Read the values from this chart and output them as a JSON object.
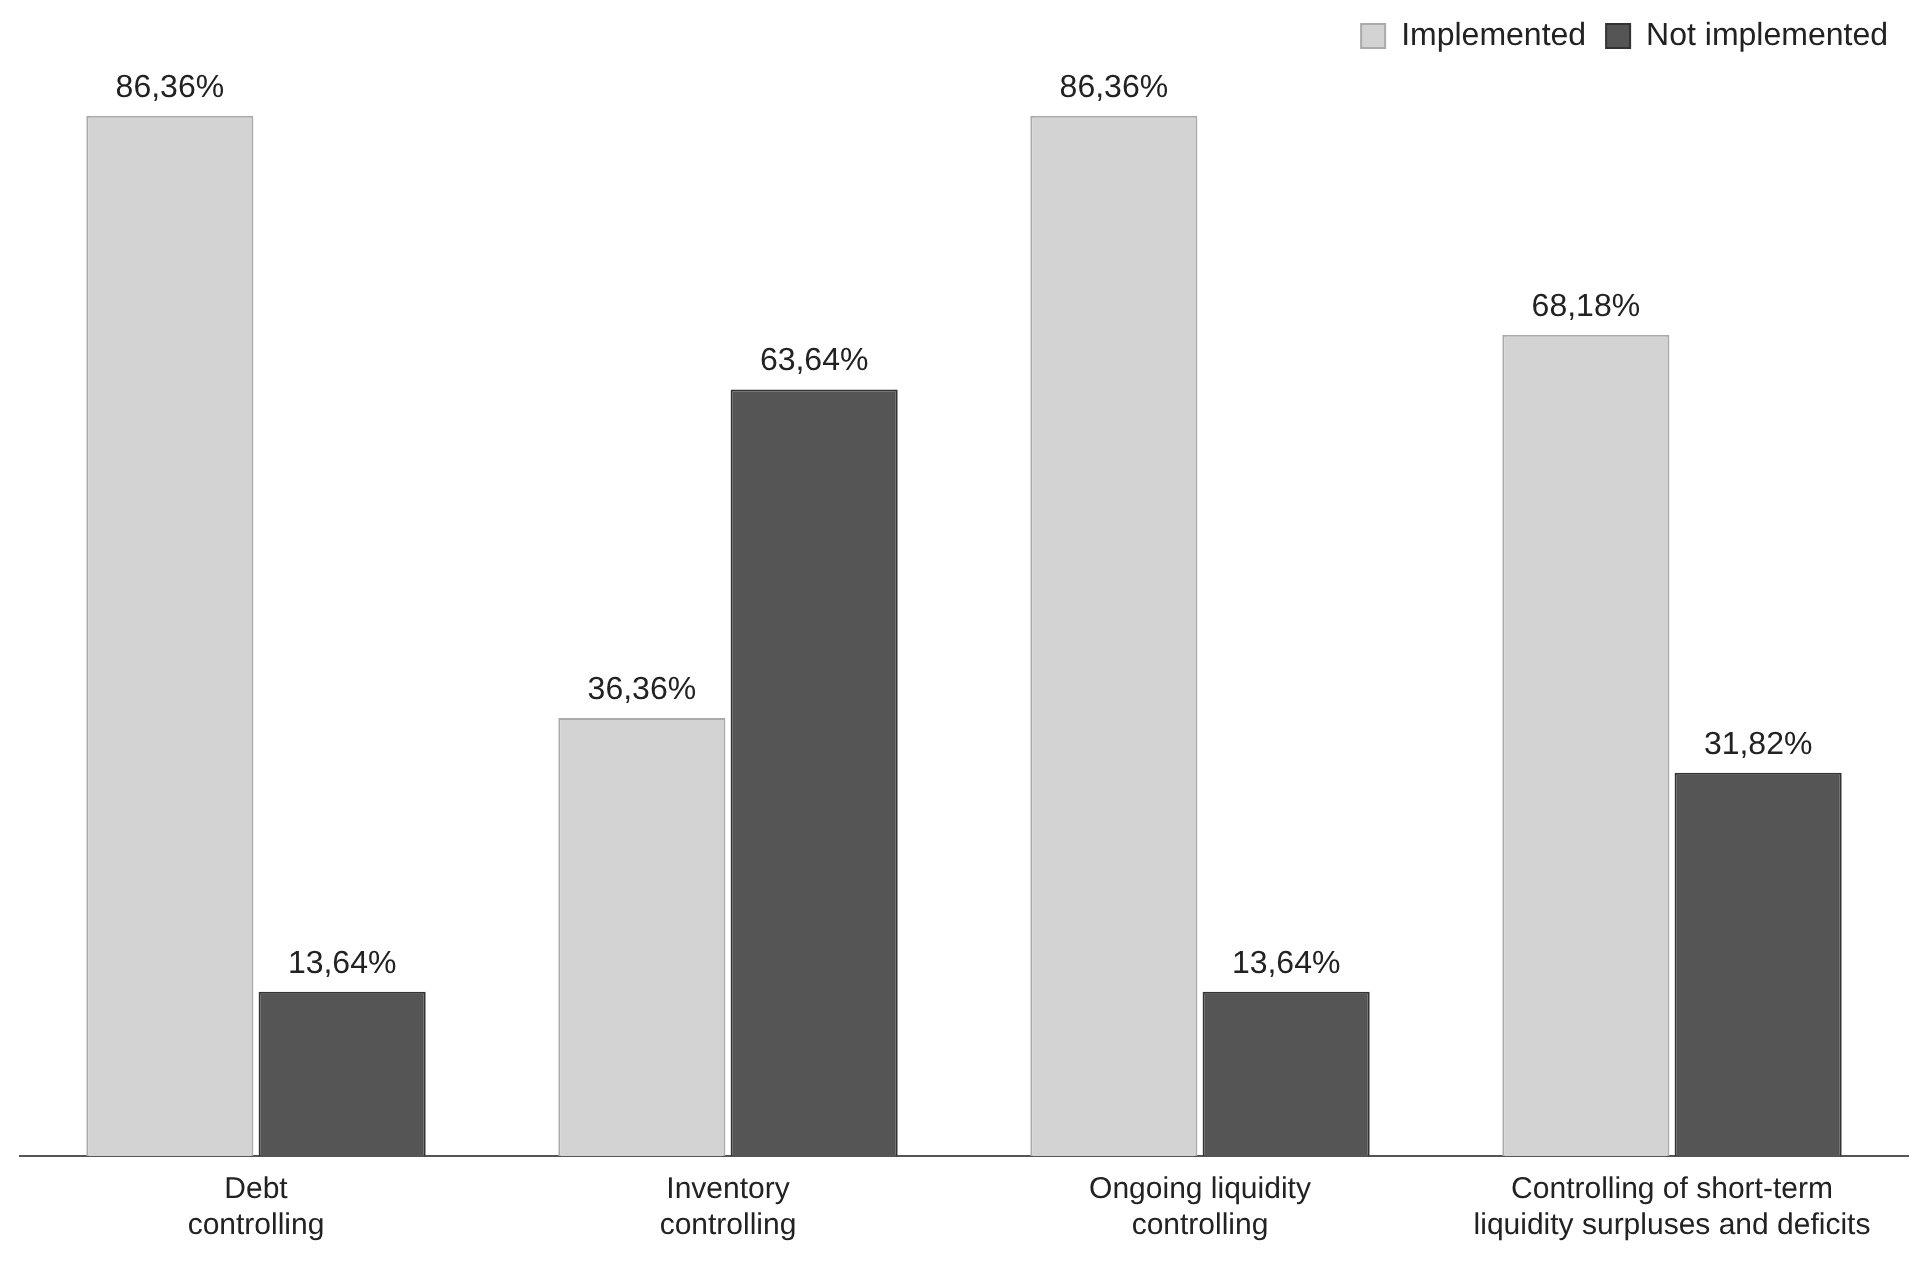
{
  "chart_data": {
    "type": "bar",
    "categories": [
      "Debt\ncontrolling",
      "Inventory\ncontrolling",
      "Ongoing liquidity\ncontrolling",
      "Controlling of short-term\nliquidity surpluses and deficits"
    ],
    "series": [
      {
        "name": "Implemented",
        "color": "#d3d3d3",
        "values": [
          86.36,
          36.36,
          86.36,
          68.18
        ],
        "value_labels": [
          "86,36%",
          "36,36%",
          "86,36%",
          "68,18%"
        ]
      },
      {
        "name": "Not implemented",
        "color": "#555555",
        "values": [
          13.64,
          63.64,
          13.64,
          31.82
        ],
        "value_labels": [
          "13,64%",
          "63,64%",
          "13,64%",
          "31,82%"
        ]
      }
    ],
    "legend": "top right"
  }
}
